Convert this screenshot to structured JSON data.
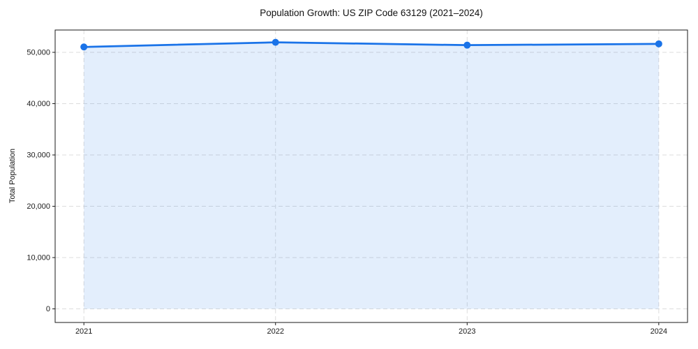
{
  "figure": {
    "background": "#ffffff"
  },
  "chart_data": {
    "type": "area",
    "title": "Population Growth: US ZIP Code 63129 (2021–2024)",
    "ylabel": "Total Population",
    "xlabel": "",
    "x": [
      2021,
      2022,
      2023,
      2024
    ],
    "values": [
      51050,
      51950,
      51400,
      51650
    ],
    "series_name": "Total Population",
    "xtick_labels": [
      "2021",
      "2022",
      "2023",
      "2024"
    ],
    "yticks": [
      0,
      10000,
      20000,
      30000,
      40000,
      50000
    ],
    "ytick_labels": [
      "0",
      "10,000",
      "20,000",
      "30,000",
      "40,000",
      "50,000"
    ],
    "xlim": [
      2020.85,
      2024.15
    ],
    "ylim": [
      -2650,
      54350
    ],
    "grid": true,
    "grid_style": "dashed",
    "legend": "none",
    "line_color": "#1a73e8",
    "marker_color": "#1a73e8",
    "fill_color": "rgba(26,115,232,0.12)",
    "axis_color": "#1a1a1a",
    "grid_color": "#dcdcdc",
    "marker": "circle",
    "line_width": 2.75,
    "marker_radius": 5
  }
}
